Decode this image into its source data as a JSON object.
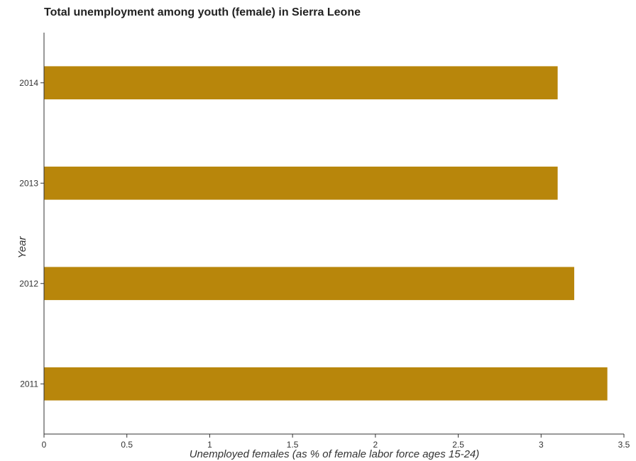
{
  "chart_data": {
    "type": "bar",
    "orientation": "horizontal",
    "title": "Total unemployment among youth (female) in Sierra Leone",
    "xlabel": "Unemployed females (as % of female labor force ages 15-24)",
    "ylabel": "Year",
    "categories": [
      "2011",
      "2012",
      "2013",
      "2014"
    ],
    "values": [
      3.4,
      3.2,
      3.1,
      3.1
    ],
    "xlim": [
      0,
      3.5
    ],
    "xticks": [
      "0",
      "0.5",
      "1",
      "1.5",
      "2",
      "2.5",
      "3",
      "3.5"
    ],
    "bar_color": "#b8860b",
    "grid": false
  }
}
